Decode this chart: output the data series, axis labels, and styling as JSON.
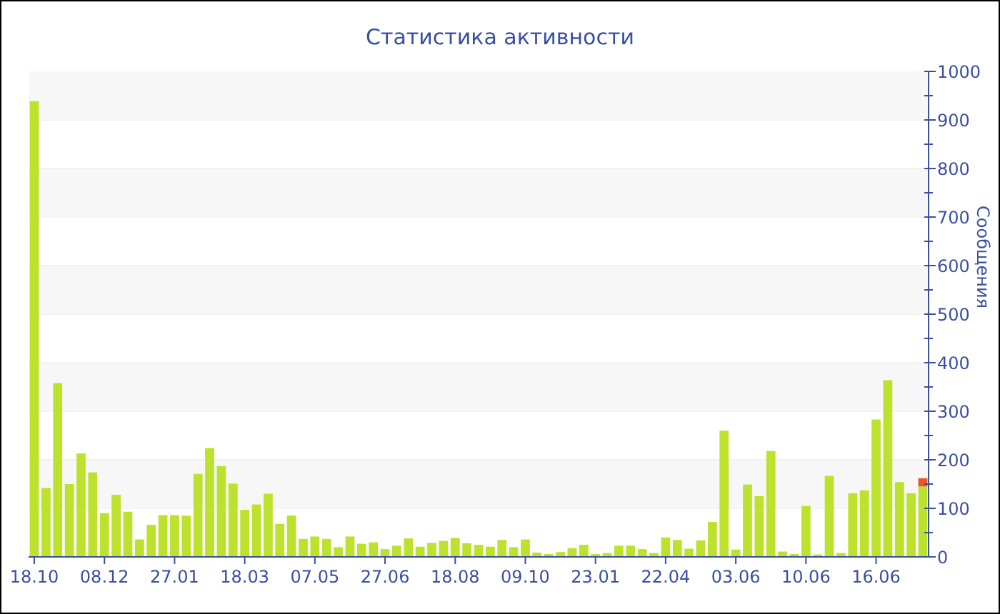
{
  "chart_data": {
    "type": "bar",
    "title": "Статистика активности",
    "ylabel": "Сообщения",
    "categories": [
      "18.10",
      null,
      null,
      null,
      null,
      null,
      "08.12",
      null,
      null,
      null,
      null,
      null,
      "27.01",
      null,
      null,
      null,
      null,
      null,
      "18.03",
      null,
      null,
      null,
      null,
      null,
      "07.05",
      null,
      null,
      null,
      null,
      null,
      "27.06",
      null,
      null,
      null,
      null,
      null,
      "18.08",
      null,
      null,
      null,
      null,
      null,
      "09.10",
      null,
      null,
      null,
      null,
      null,
      "23.01",
      null,
      null,
      null,
      null,
      null,
      "22.04",
      null,
      null,
      null,
      null,
      null,
      "03.06",
      null,
      null,
      null,
      null,
      null,
      "10.06",
      null,
      null,
      null,
      null,
      null,
      "16.06",
      null,
      null,
      null,
      null
    ],
    "stacked": true,
    "series": [
      {
        "color": "#bde22e",
        "values": [
          939,
          142,
          358,
          150,
          213,
          174,
          90,
          128,
          93,
          36,
          66,
          86,
          86,
          85,
          171,
          224,
          187,
          151,
          97,
          108,
          130,
          68,
          85,
          37,
          42,
          37,
          20,
          42,
          27,
          30,
          16,
          23,
          38,
          21,
          29,
          33,
          39,
          28,
          25,
          21,
          35,
          20,
          36,
          9,
          6,
          10,
          18,
          25,
          6,
          8,
          23,
          23,
          16,
          8,
          40,
          35,
          17,
          34,
          72,
          260,
          15,
          149,
          125,
          218,
          11,
          6,
          105,
          5,
          167,
          8,
          131,
          137,
          283,
          364,
          154,
          131,
          145
        ]
      },
      {
        "color": "#e8572a",
        "values": [
          null,
          null,
          null,
          null,
          null,
          null,
          null,
          null,
          null,
          null,
          null,
          null,
          null,
          null,
          null,
          null,
          null,
          null,
          null,
          null,
          null,
          null,
          null,
          null,
          null,
          null,
          null,
          null,
          null,
          null,
          null,
          null,
          null,
          null,
          null,
          null,
          null,
          null,
          null,
          null,
          null,
          null,
          null,
          null,
          null,
          null,
          null,
          null,
          null,
          null,
          null,
          null,
          null,
          null,
          null,
          null,
          null,
          null,
          null,
          null,
          null,
          null,
          null,
          null,
          null,
          null,
          null,
          null,
          null,
          null,
          null,
          null,
          null,
          null,
          null,
          null,
          17
        ]
      }
    ],
    "ylim": [
      0,
      1000
    ],
    "yticks": [
      0,
      {
        "value": 50,
        "label": null
      },
      100,
      {
        "value": 150,
        "label": null
      },
      200,
      {
        "value": 250,
        "label": null
      },
      300,
      {
        "value": 350,
        "label": null
      },
      400,
      {
        "value": 450,
        "label": null
      },
      500,
      {
        "value": 550,
        "label": null
      },
      600,
      {
        "value": 650,
        "label": null
      },
      700,
      {
        "value": 750,
        "label": null
      },
      800,
      {
        "value": 850,
        "label": null
      },
      900,
      {
        "value": 950,
        "label": null
      },
      1000
    ],
    "grid": "y"
  }
}
